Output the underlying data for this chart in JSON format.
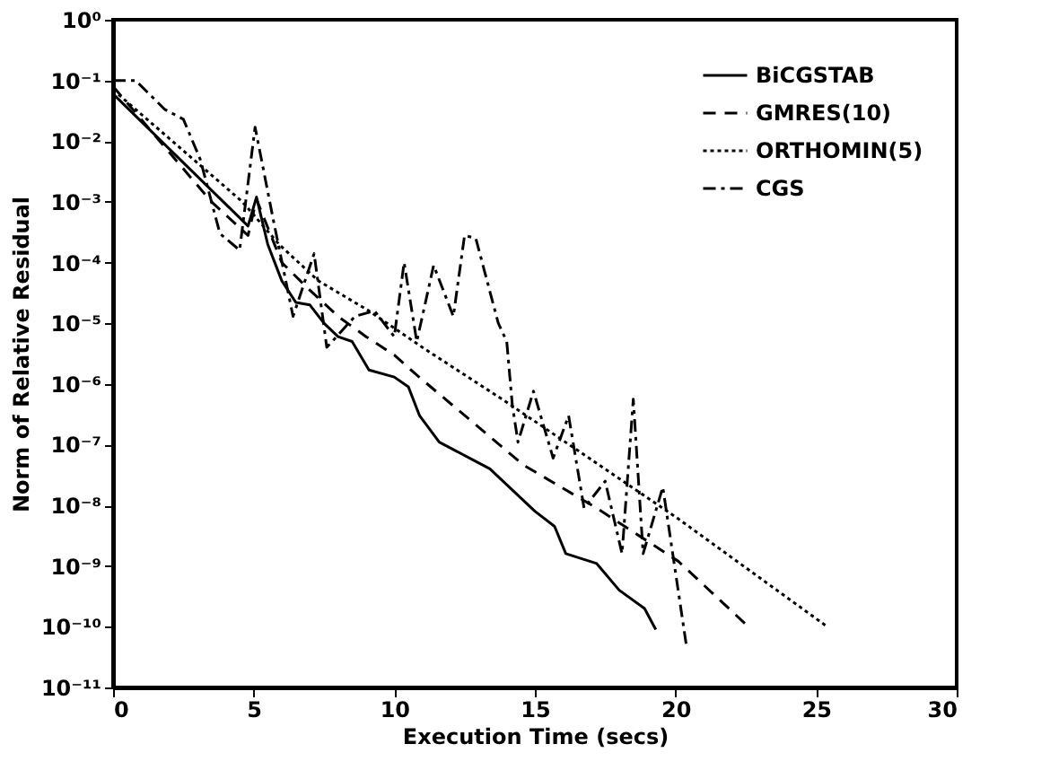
{
  "chart_data": {
    "type": "line",
    "xlabel": "Execution Time (secs)",
    "ylabel": "Norm of Relative Residual",
    "log": "y",
    "xlim": [
      0,
      30
    ],
    "xticks": [
      0,
      5,
      10,
      15,
      20,
      25,
      30
    ],
    "ylim": [
      1e-11,
      1
    ],
    "yticks": [
      {
        "value": 1,
        "label": "10⁰"
      },
      {
        "value": 0.1,
        "label": "10⁻¹"
      },
      {
        "value": 0.01,
        "label": "10⁻²"
      },
      {
        "value": 0.001,
        "label": "10⁻³"
      },
      {
        "value": 0.0001,
        "label": "10⁻⁴"
      },
      {
        "value": 1e-05,
        "label": "10⁻⁵"
      },
      {
        "value": 1e-06,
        "label": "10⁻⁶"
      },
      {
        "value": 1e-07,
        "label": "10⁻⁷"
      },
      {
        "value": 1e-08,
        "label": "10⁻⁸"
      },
      {
        "value": 1e-09,
        "label": "10⁻⁹"
      },
      {
        "value": 1e-10,
        "label": "10⁻¹⁰"
      },
      {
        "value": 1e-11,
        "label": "10⁻¹¹"
      }
    ],
    "grid": false,
    "legend": "top right",
    "marker": "none",
    "series": [
      {
        "name": "BiCGSTAB",
        "color": "#000000",
        "line_style": "solid",
        "x": [
          0,
          4.8,
          5.1,
          5.5,
          6,
          6.5,
          7,
          7.5,
          8,
          8.5,
          9.1,
          10,
          10.5,
          10.9,
          11.6,
          13.4,
          15.0,
          15.7,
          16.1,
          17.2,
          18.0,
          18.9,
          19.3
        ],
        "values": [
          0.06,
          0.0004,
          0.0012,
          0.0002,
          5e-05,
          2.2e-05,
          2e-05,
          1e-05,
          6e-06,
          5e-06,
          1.7e-06,
          1.3e-06,
          9e-07,
          3e-07,
          1.1e-07,
          4e-08,
          8e-09,
          4.5e-09,
          1.6e-09,
          1.1e-09,
          4e-10,
          2e-10,
          9e-11
        ]
      },
      {
        "name": "GMRES(10)",
        "color": "#000000",
        "line_style": "dashed",
        "x": [
          0,
          3.5,
          4.8,
          5.1,
          6,
          7,
          8,
          9,
          10,
          10.8,
          14.6,
          17.2,
          20.1,
          22.5
        ],
        "values": [
          0.08,
          0.001,
          0.00028,
          0.0011,
          0.0001,
          3.5e-05,
          1.3e-05,
          6e-06,
          3e-06,
          1.4e-06,
          4.6e-08,
          9e-09,
          1.2e-09,
          1.1e-10
        ]
      },
      {
        "name": "ORTHOMIN(5)",
        "color": "#000000",
        "line_style": "dotted",
        "x": [
          0,
          4.6,
          5.9,
          7.3,
          9.1,
          11.0,
          14.0,
          20.1,
          25.4
        ],
        "values": [
          0.07,
          0.001,
          0.0002,
          5e-05,
          1.6e-05,
          4e-06,
          5e-07,
          6e-09,
          1e-10
        ]
      },
      {
        "name": "CGS",
        "color": "#000000",
        "line_style": "dashdot",
        "x": [
          0,
          0.8,
          1.85,
          2.5,
          3.1,
          3.8,
          4.5,
          5.05,
          5.7,
          6.4,
          7.15,
          7.6,
          8.6,
          9.3,
          10.0,
          10.35,
          10.8,
          11.4,
          12.1,
          12.5,
          12.9,
          13.7,
          14.0,
          14.2,
          14.4,
          14.95,
          15.65,
          16.2,
          16.75,
          17.5,
          18.1,
          18.5,
          18.85,
          19.55,
          20.4
        ],
        "values": [
          0.1,
          0.1,
          0.033,
          0.023,
          0.005,
          0.0003,
          0.00016,
          0.017,
          0.0005,
          1.3e-05,
          0.00014,
          4e-06,
          1.3e-05,
          1.6e-05,
          6e-06,
          0.0001,
          5e-06,
          9e-05,
          1.3e-05,
          0.00028,
          0.00025,
          1e-05,
          5e-06,
          4.4e-07,
          1.1e-07,
          7.6e-07,
          6e-08,
          3e-07,
          9e-09,
          2.5e-08,
          1.6e-09,
          5.6e-07,
          1.6e-09,
          2e-08,
          4.5e-11
        ]
      }
    ]
  }
}
